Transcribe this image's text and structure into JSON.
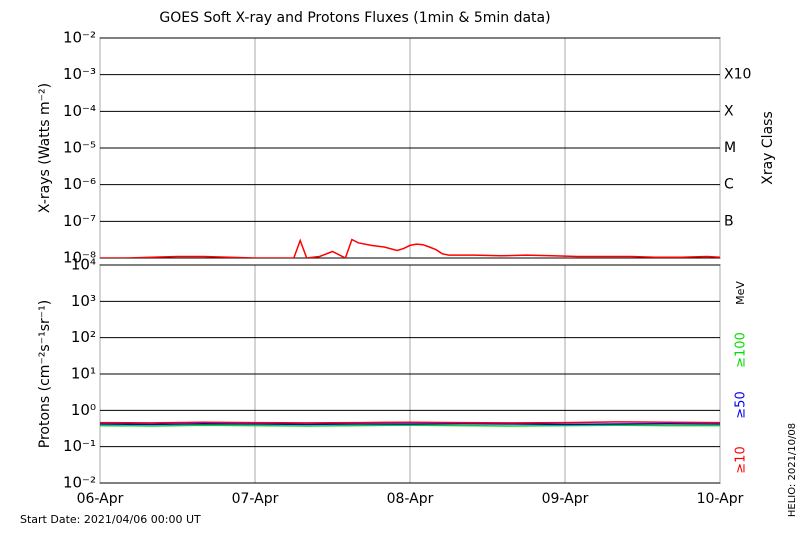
{
  "title": "GOES Soft X-ray and Protons Fluxes   (1min & 5min data)",
  "start_date": "Start Date: 2021/04/06 00:00 UT",
  "credit": "HELIO: 2021/10/08",
  "chart_data": [
    {
      "type": "line",
      "ylabel": "X-rays (Watts m⁻²)",
      "log_y": true,
      "grid": true,
      "ylim": [
        1e-08,
        0.01
      ],
      "yticks": [
        {
          "value": 0.01,
          "label": "10⁻²"
        },
        {
          "value": 0.001,
          "label": "10⁻³"
        },
        {
          "value": 0.0001,
          "label": "10⁻⁴"
        },
        {
          "value": 1e-05,
          "label": "10⁻⁵"
        },
        {
          "value": 1e-06,
          "label": "10⁻⁶"
        },
        {
          "value": 1e-07,
          "label": "10⁻⁷"
        },
        {
          "value": 1e-08,
          "label": "10⁻⁸"
        }
      ],
      "y2label": "Xray Class",
      "y2lim": [
        1e-08,
        0.01
      ],
      "y2ticks": [
        {
          "value": 0.001,
          "label": "X10"
        },
        {
          "value": 0.0001,
          "label": "X"
        },
        {
          "value": 1e-05,
          "label": "M"
        },
        {
          "value": 1e-06,
          "label": "C"
        },
        {
          "value": 1e-07,
          "label": "B"
        }
      ],
      "xlim": [
        0,
        96
      ],
      "xticks": [
        0,
        24,
        48,
        72,
        96
      ],
      "x": [
        0,
        4,
        8,
        12,
        16,
        20,
        24,
        28,
        30,
        31,
        32,
        34,
        36,
        38,
        39,
        40,
        42,
        44,
        46,
        47,
        48,
        49,
        50,
        51,
        52,
        53,
        54,
        58,
        62,
        66,
        70,
        74,
        78,
        82,
        86,
        90,
        94,
        96
      ],
      "series": [
        {
          "color": "#ff0000",
          "values": [
            1e-08,
            1e-08,
            1.05e-08,
            1.1e-08,
            1.1e-08,
            1.05e-08,
            1e-08,
            1e-08,
            1e-08,
            3e-08,
            1e-08,
            1.1e-08,
            1.5e-08,
            1e-08,
            3.2e-08,
            2.6e-08,
            2.2e-08,
            2e-08,
            1.6e-08,
            1.8e-08,
            2.2e-08,
            2.4e-08,
            2.3e-08,
            2e-08,
            1.7e-08,
            1.3e-08,
            1.2e-08,
            1.2e-08,
            1.15e-08,
            1.2e-08,
            1.15e-08,
            1.1e-08,
            1.1e-08,
            1.1e-08,
            1.05e-08,
            1.05e-08,
            1.1e-08,
            1.05e-08
          ]
        }
      ]
    },
    {
      "type": "line",
      "ylabel": "Protons (cm⁻²s⁻¹sr⁻¹)",
      "log_y": true,
      "grid": true,
      "ylim": [
        0.01,
        10000
      ],
      "yticks": [
        {
          "value": 10000,
          "label": "10⁴"
        },
        {
          "value": 1000,
          "label": "10³"
        },
        {
          "value": 100,
          "label": "10²"
        },
        {
          "value": 10,
          "label": "10¹"
        },
        {
          "value": 1,
          "label": "10⁰"
        },
        {
          "value": 0.1,
          "label": "10⁻¹"
        },
        {
          "value": 0.01,
          "label": "10⁻²"
        }
      ],
      "threshold": 10,
      "legend_unit": "MeV",
      "xlim": [
        0,
        96
      ],
      "xticks": [
        {
          "value": 0,
          "label": "06-Apr"
        },
        {
          "value": 24,
          "label": "07-Apr"
        },
        {
          "value": 48,
          "label": "08-Apr"
        },
        {
          "value": 72,
          "label": "09-Apr"
        },
        {
          "value": 96,
          "label": "10-Apr"
        }
      ],
      "x": [
        0,
        8,
        16,
        24,
        32,
        40,
        48,
        56,
        64,
        72,
        80,
        88,
        96
      ],
      "series": [
        {
          "name": "≥100",
          "color": "#00dd00",
          "values": [
            0.38,
            0.37,
            0.39,
            0.38,
            0.37,
            0.38,
            0.39,
            0.38,
            0.37,
            0.38,
            0.39,
            0.38,
            0.38
          ]
        },
        {
          "name": "≥50",
          "color": "#0000ff",
          "values": [
            0.42,
            0.41,
            0.43,
            0.42,
            0.41,
            0.42,
            0.42,
            0.43,
            0.42,
            0.41,
            0.42,
            0.43,
            0.42
          ]
        },
        {
          "name": "≥10",
          "color": "#ff0000",
          "values": [
            0.46,
            0.45,
            0.47,
            0.46,
            0.45,
            0.46,
            0.47,
            0.46,
            0.45,
            0.46,
            0.48,
            0.47,
            0.46
          ]
        }
      ]
    }
  ]
}
